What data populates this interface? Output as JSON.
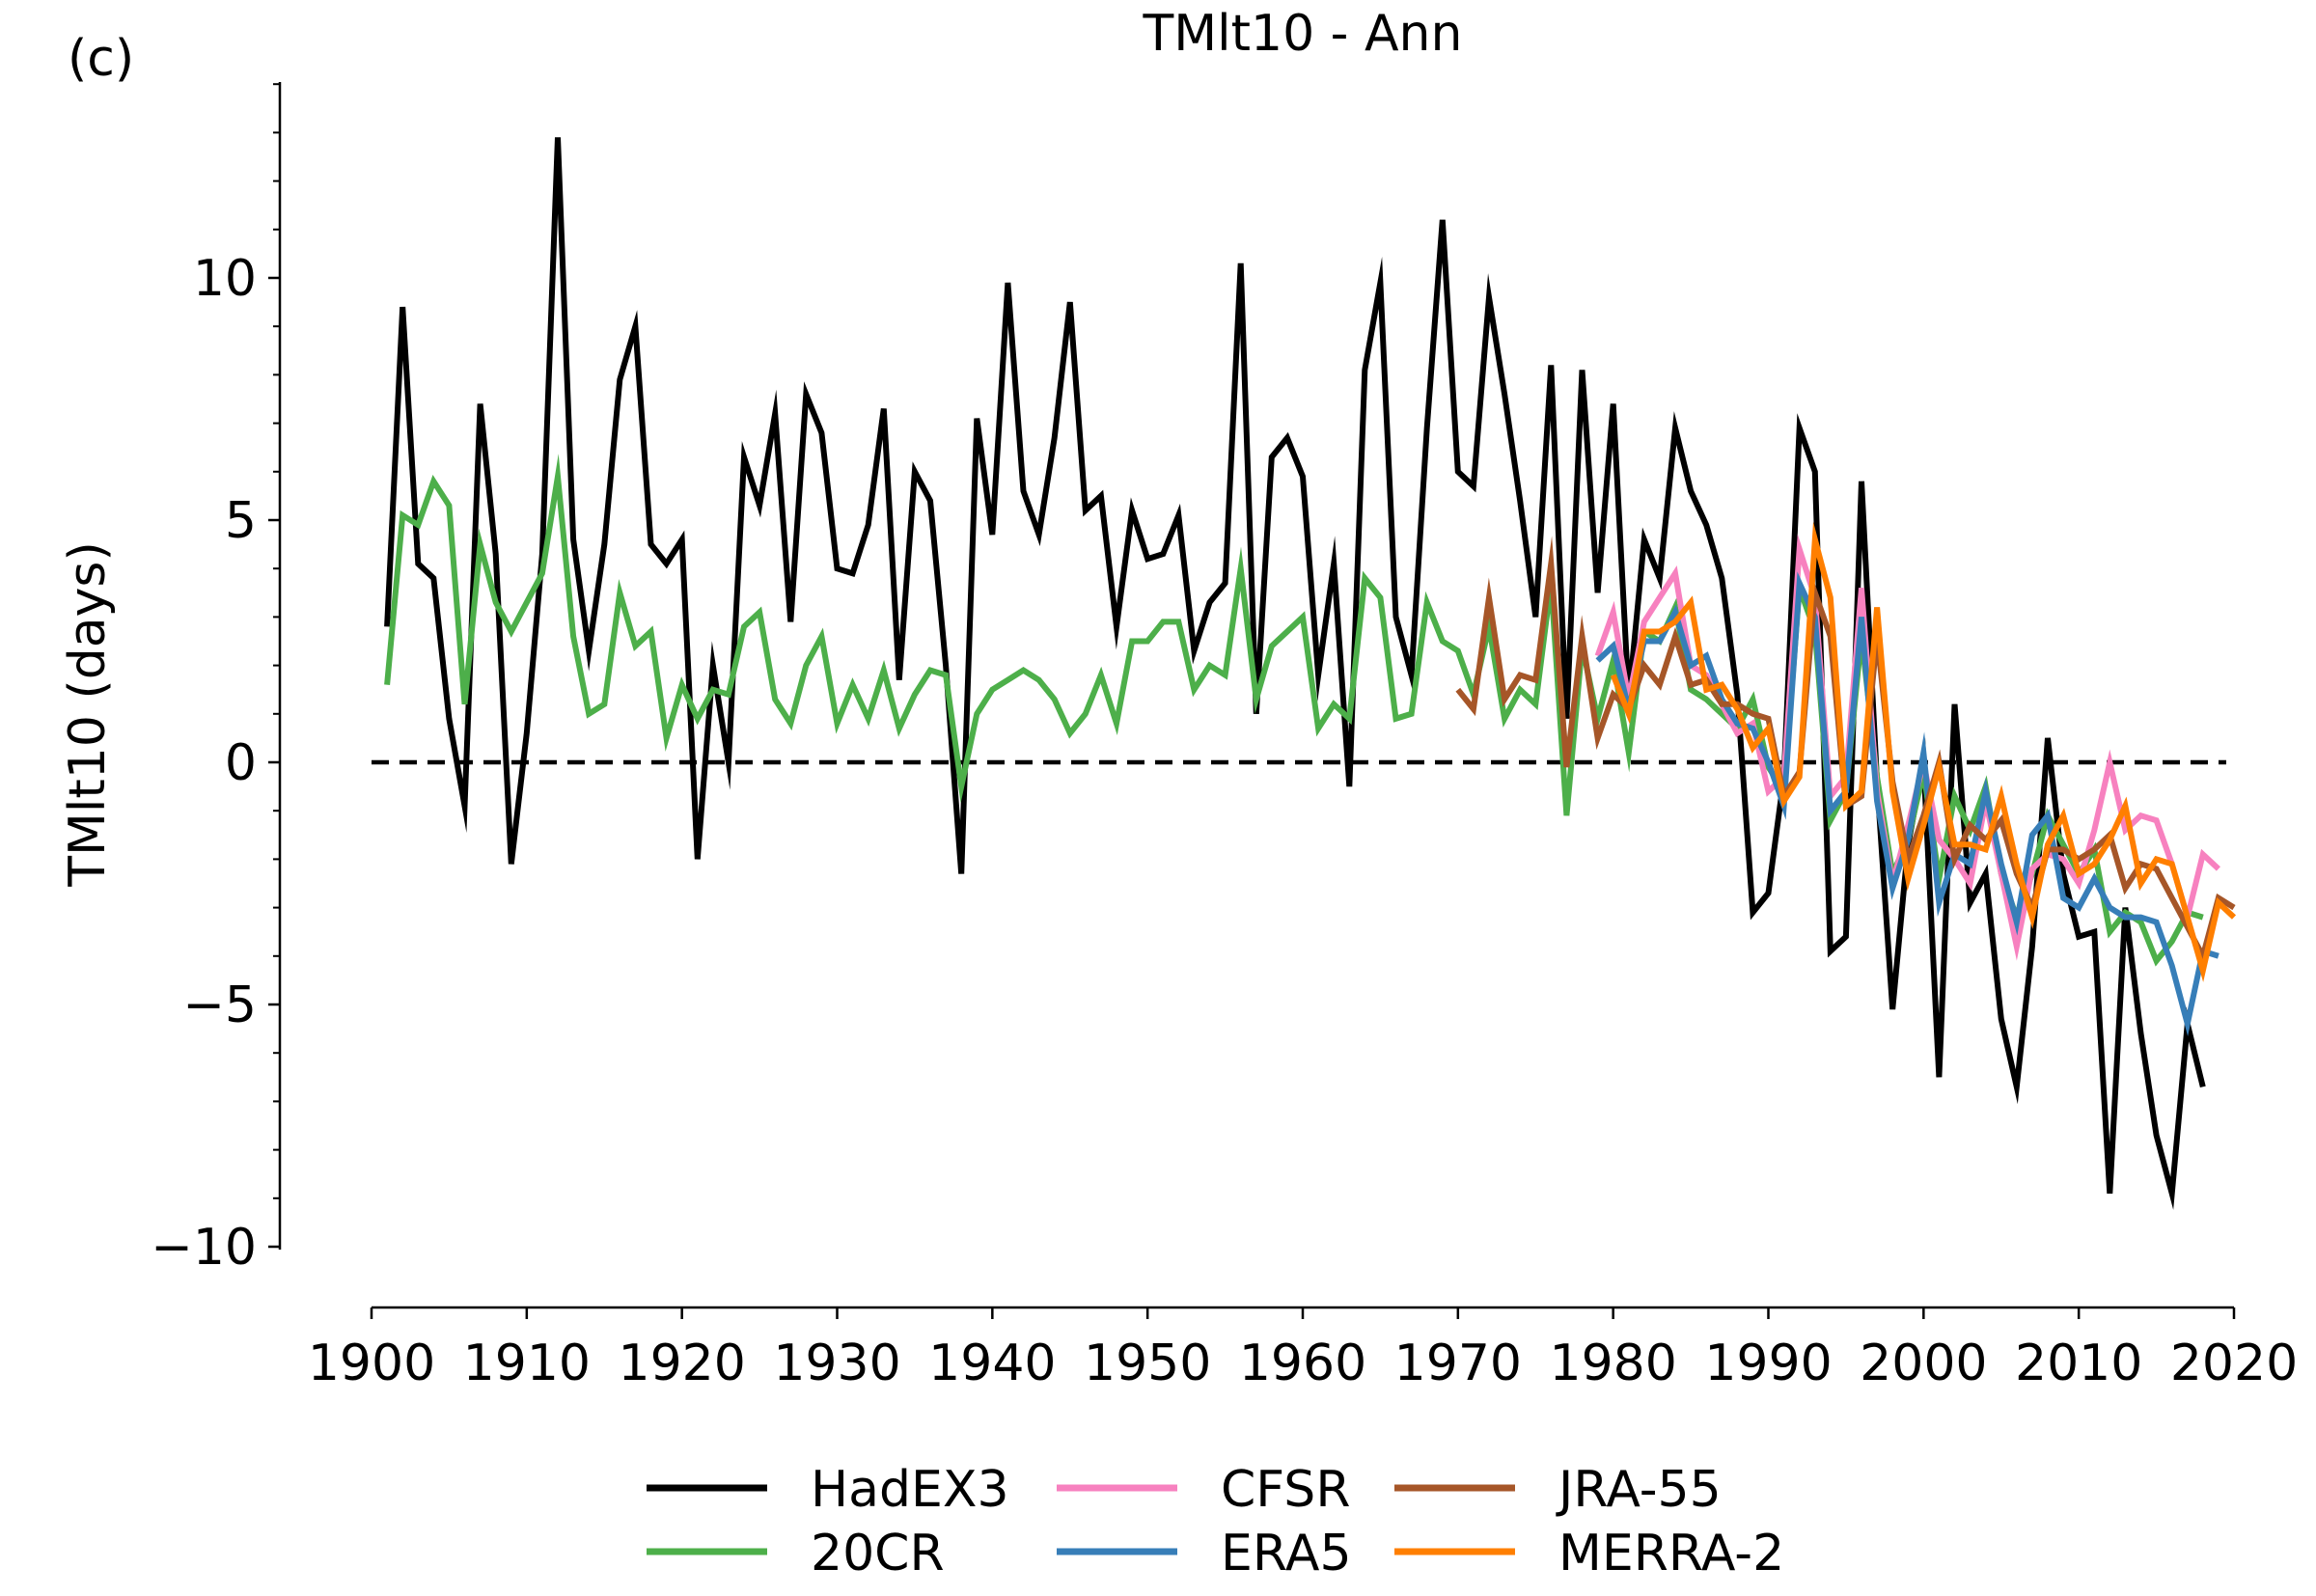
{
  "panel_label": "(c)",
  "chart_data": {
    "type": "line",
    "title": "TMlt10 - Ann",
    "ylabel": "TMlt10 (days)",
    "xlabel": "",
    "xlim": [
      1900,
      2020
    ],
    "ylim": [
      -11,
      14
    ],
    "x_ticks": [
      1900,
      1910,
      1920,
      1930,
      1940,
      1950,
      1960,
      1970,
      1980,
      1990,
      2000,
      2010,
      2020
    ],
    "y_ticks": [
      -10,
      -5,
      0,
      5,
      10
    ],
    "y_tick_labels": [
      "−10",
      "−5",
      "0",
      "5",
      "10"
    ],
    "reference_line": {
      "y": 0,
      "style": "dashed"
    },
    "legend": {
      "placement": "bottom-center",
      "columns": 3
    },
    "series": [
      {
        "name": "HadEX3",
        "color": "#000000",
        "start": 1901,
        "values": [
          2.8,
          9.4,
          4.1,
          3.8,
          0.9,
          -0.9,
          7.4,
          4.3,
          -2.1,
          0.6,
          4.3,
          12.9,
          4.6,
          2.3,
          4.5,
          7.9,
          9.0,
          4.5,
          4.1,
          4.6,
          -2.0,
          2.0,
          0.0,
          6.3,
          5.3,
          7.2,
          2.9,
          7.6,
          6.8,
          4.0,
          3.9,
          4.9,
          7.3,
          1.7,
          6.0,
          5.4,
          2.0,
          -2.3,
          7.1,
          4.7,
          9.9,
          5.6,
          4.7,
          6.7,
          9.5,
          5.2,
          5.5,
          2.8,
          5.2,
          4.2,
          4.3,
          5.1,
          2.3,
          3.3,
          3.7,
          10.3,
          1.0,
          6.3,
          6.7,
          5.9,
          1.8,
          4.1,
          -0.5,
          8.1,
          9.9,
          3.0,
          1.8,
          6.9,
          11.2,
          6.0,
          5.7,
          9.6,
          7.6,
          5.4,
          3.0,
          8.2,
          0.9,
          8.1,
          3.5,
          7.4,
          1.3,
          4.6,
          3.8,
          6.9,
          5.6,
          4.9,
          3.8,
          1.4,
          -3.1,
          -2.7,
          -0.3,
          6.9,
          6.0,
          -3.9,
          -3.6,
          5.8,
          -0.4,
          -5.1,
          -1.7,
          0.0,
          -6.5,
          1.2,
          -2.9,
          -2.3,
          -5.3,
          -6.7,
          -3.8,
          0.5,
          -2.3,
          -3.6,
          -3.5,
          -8.9,
          -3.0,
          -5.6,
          -7.7,
          -8.9,
          -5.4,
          -6.7
        ]
      },
      {
        "name": "20CR",
        "color": "#4daf4a",
        "start": 1901,
        "values": [
          1.6,
          5.1,
          4.9,
          5.8,
          5.3,
          1.2,
          4.5,
          3.3,
          2.7,
          3.3,
          3.9,
          5.9,
          2.6,
          1.0,
          1.2,
          3.5,
          2.4,
          2.7,
          0.5,
          1.6,
          0.9,
          1.5,
          1.4,
          2.8,
          3.1,
          1.3,
          0.8,
          2.0,
          2.6,
          0.8,
          1.6,
          0.9,
          1.9,
          0.7,
          1.4,
          1.9,
          1.8,
          -0.5,
          1.0,
          1.5,
          1.7,
          1.9,
          1.7,
          1.3,
          0.6,
          1.0,
          1.8,
          0.8,
          2.5,
          2.5,
          2.9,
          2.9,
          1.5,
          2.0,
          1.8,
          4.0,
          1.3,
          2.4,
          2.7,
          3.0,
          0.7,
          1.2,
          0.9,
          3.8,
          3.4,
          0.9,
          1.0,
          3.3,
          2.5,
          2.3,
          1.4,
          2.8,
          0.9,
          1.5,
          1.2,
          3.7,
          -1.1,
          2.4,
          0.9,
          2.1,
          0.2,
          2.7,
          2.5,
          3.2,
          1.5,
          1.3,
          1.0,
          0.7,
          1.3,
          -0.1,
          -0.6,
          3.6,
          2.7,
          -1.2,
          -0.6,
          2.6,
          -0.3,
          -2.3,
          -1.6,
          -0.2,
          -2.4,
          -0.7,
          -1.4,
          -0.5,
          -2.3,
          -3.2,
          -2.3,
          -1.1,
          -1.7,
          -2.3,
          -1.8,
          -3.5,
          -3.1,
          -3.3,
          -4.1,
          -3.7,
          -3.1,
          -3.2
        ]
      },
      {
        "name": "CFSR",
        "color": "#f781bf",
        "start": 1979,
        "values": [
          2.2,
          3.1,
          1.3,
          2.9,
          3.4,
          3.9,
          2.0,
          1.8,
          1.2,
          0.6,
          0.8,
          -0.6,
          -0.3,
          4.4,
          3.4,
          -0.7,
          -0.3,
          3.6,
          -0.6,
          -2.5,
          -1.3,
          0.0,
          -1.6,
          -2.0,
          -2.5,
          -0.8,
          -2.3,
          -3.8,
          -2.2,
          -1.9,
          -2.0,
          -2.5,
          -1.4,
          0.0,
          -1.4,
          -1.1,
          -1.2,
          -2.1,
          -3.2,
          -1.9,
          -2.2
        ]
      },
      {
        "name": "ERA5",
        "color": "#377eb8",
        "start": 1979,
        "values": [
          2.1,
          2.4,
          1.1,
          2.5,
          2.5,
          3.1,
          2.0,
          2.2,
          1.3,
          0.8,
          0.7,
          0.0,
          -0.9,
          3.7,
          3.0,
          -1.0,
          -0.6,
          3.0,
          -0.8,
          -2.6,
          -1.6,
          0.2,
          -2.9,
          -1.9,
          -2.1,
          -0.6,
          -2.1,
          -3.3,
          -1.5,
          -1.1,
          -2.8,
          -3.0,
          -2.4,
          -3.0,
          -3.2,
          -3.2,
          -3.3,
          -4.2,
          -5.4,
          -3.9,
          -4.0
        ]
      },
      {
        "name": "JRA-55",
        "color": "#a65628",
        "start": 1970,
        "values": [
          1.5,
          1.1,
          3.4,
          1.3,
          1.8,
          1.7,
          4.1,
          -0.1,
          2.6,
          0.5,
          1.4,
          1.1,
          2.0,
          1.6,
          2.6,
          1.6,
          1.7,
          1.2,
          1.2,
          1.0,
          0.9,
          -0.7,
          -0.2,
          3.5,
          2.6,
          -0.9,
          -0.7,
          2.6,
          -0.4,
          -2.0,
          -1.1,
          0.0,
          -2.0,
          -1.3,
          -1.6,
          -1.2,
          -2.3,
          -3.0,
          -1.8,
          -1.8,
          -2.0,
          -1.8,
          -1.5,
          -2.6,
          -2.1,
          -2.2,
          -2.8,
          -3.4,
          -4.0,
          -2.8,
          -3.0
        ]
      },
      {
        "name": "MERRA-2",
        "color": "#ff7f00",
        "start": 1980,
        "values": [
          1.8,
          1.0,
          2.7,
          2.7,
          2.9,
          3.3,
          1.5,
          1.6,
          1.1,
          0.3,
          0.7,
          -0.8,
          -0.3,
          4.6,
          3.4,
          -0.9,
          -0.6,
          3.2,
          -0.6,
          -2.4,
          -1.3,
          -0.1,
          -1.7,
          -1.7,
          -1.8,
          -0.7,
          -2.1,
          -3.2,
          -1.7,
          -1.1,
          -2.3,
          -2.1,
          -1.6,
          -0.9,
          -2.5,
          -2.0,
          -2.1,
          -3.2,
          -4.3,
          -2.9,
          -3.2
        ]
      }
    ]
  }
}
